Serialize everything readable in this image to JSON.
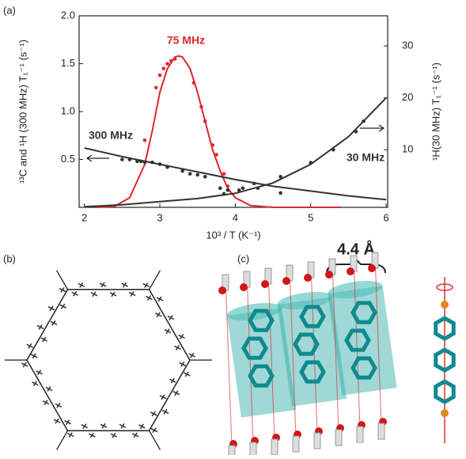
{
  "chart_data": {
    "type": "line",
    "xlabel": "10³ / T   (K⁻¹)",
    "ylabel": "¹³C and ¹H (300 MHz)  T₁⁻¹ (s⁻¹)",
    "y2label": "¹H(30 MHz) T₁⁻¹ (s⁻¹)",
    "xlim": [
      1.93,
      6.02
    ],
    "xticks": [
      2,
      3,
      4,
      5,
      6
    ],
    "ylim": [
      0,
      2.0
    ],
    "yticks": [
      {
        "value": 0.5,
        "label": "0.5"
      },
      {
        "value": 1.0,
        "label": "1.0"
      },
      {
        "value": 1.5,
        "label": "1.5"
      },
      {
        "value": 2.0,
        "label": "2.0"
      }
    ],
    "y2lim": [
      -1.1,
      35.8
    ],
    "y2ticks": [
      10,
      20,
      30
    ],
    "series": [
      {
        "name": "75 MHz",
        "color": "#e0262c",
        "x": [
          2.8,
          2.95,
          3.0,
          3.05,
          3.1,
          3.15,
          3.2,
          3.45,
          3.55,
          3.6,
          3.7,
          3.75,
          3.85,
          3.9
        ],
        "values": [
          0.7,
          1.25,
          1.38,
          1.45,
          1.5,
          1.53,
          1.55,
          1.3,
          1.05,
          0.9,
          0.65,
          0.55,
          0.35,
          0.22
        ],
        "fit_x": [
          2.15,
          2.4,
          2.6,
          2.8,
          2.9,
          3.0,
          3.1,
          3.2,
          3.25,
          3.3,
          3.4,
          3.5,
          3.6,
          3.7,
          3.8,
          3.9,
          4.0,
          4.2,
          4.5,
          5.0,
          5.4
        ],
        "fit_values": [
          0,
          0.01,
          0.1,
          0.45,
          0.8,
          1.2,
          1.45,
          1.57,
          1.58,
          1.57,
          1.45,
          1.2,
          0.9,
          0.6,
          0.38,
          0.2,
          0.1,
          0.02,
          0,
          0,
          0
        ]
      },
      {
        "name": "300 MHz",
        "color": "#333333",
        "x": [
          2.5,
          2.6,
          2.7,
          2.75,
          2.8,
          2.9,
          3.0,
          3.1,
          3.3,
          3.4,
          3.5,
          3.6,
          3.8,
          3.9,
          4.1,
          4.3,
          4.6
        ],
        "values": [
          0.5,
          0.5,
          0.48,
          0.48,
          0.47,
          0.47,
          0.45,
          0.42,
          0.38,
          0.35,
          0.34,
          0.32,
          0.2,
          0.18,
          0.2,
          0.2,
          0.15
        ],
        "fit_x": [
          2,
          2.5,
          3,
          3.5,
          4,
          4.5,
          5,
          5.5,
          6
        ],
        "fit_values": [
          0.62,
          0.53,
          0.45,
          0.37,
          0.29,
          0.22,
          0.17,
          0.12,
          0.08
        ]
      },
      {
        "name": "30 MHz",
        "color": "#333333",
        "axis": "y2",
        "x": [
          3.85,
          4.05,
          4.25,
          4.6,
          5.0,
          5.3,
          5.6,
          5.7
        ],
        "values": [
          1.5,
          2.2,
          3.5,
          4.8,
          7.5,
          10,
          13.5,
          15.5
        ],
        "fit_x": [
          2,
          2.5,
          3,
          3.5,
          4,
          4.5,
          5,
          5.5,
          6
        ],
        "fit_values": [
          -1,
          -0.6,
          0,
          0.6,
          1.6,
          3.6,
          7.2,
          12.5,
          20
        ]
      }
    ]
  },
  "figure": {
    "panel_labels": [
      "(a)",
      "(b)",
      "(c)"
    ],
    "distance_label": "4.4 Å"
  }
}
